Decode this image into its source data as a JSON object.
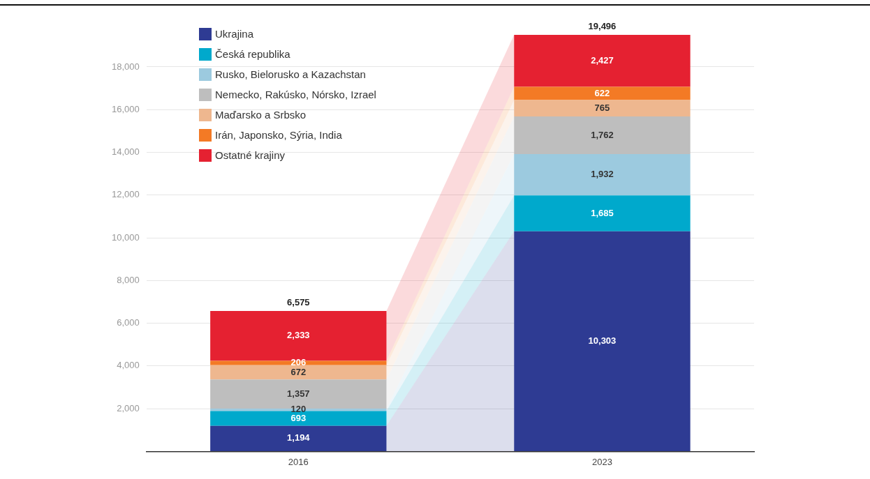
{
  "chart_data": {
    "type": "bar",
    "stacked": true,
    "categories": [
      "2016",
      "2023"
    ],
    "series": [
      {
        "name": "Ukrajina",
        "color": "#2e3b93",
        "values": [
          1194,
          10303
        ],
        "value_labels": [
          "1,194",
          "10,303"
        ]
      },
      {
        "name": "Česká republika",
        "color": "#00a9cc",
        "values": [
          693,
          1685
        ],
        "value_labels": [
          "693",
          "1,685"
        ]
      },
      {
        "name": "Rusko, Bielorusko a Kazachstan",
        "color": "#9ccadf",
        "values": [
          120,
          1932
        ],
        "value_labels": [
          "120",
          "1,932"
        ]
      },
      {
        "name": "Nemecko, Rakúsko, Nórsko, Izrael",
        "color": "#bebebe",
        "values": [
          1357,
          1762
        ],
        "value_labels": [
          "1,357",
          "1,762"
        ]
      },
      {
        "name": "Maďarsko a Srbsko",
        "color": "#eeb78f",
        "values": [
          672,
          765
        ],
        "value_labels": [
          "672",
          "765"
        ]
      },
      {
        "name": "Irán, Japonsko, Sýria, India",
        "color": "#f37a25",
        "values": [
          206,
          622
        ],
        "value_labels": [
          "206",
          "622"
        ]
      },
      {
        "name": "Ostatné krajiny",
        "color": "#e52131",
        "values": [
          2333,
          2427
        ],
        "value_labels": [
          "2,333",
          "2,427"
        ]
      }
    ],
    "totals": [
      "6,575",
      "19,496"
    ],
    "ylim": [
      0,
      19500
    ],
    "yticks": [
      {
        "value": 0,
        "label": null
      },
      {
        "value": 2000,
        "label": "2,000"
      },
      {
        "value": 4000,
        "label": "4,000"
      },
      {
        "value": 6000,
        "label": "6,000"
      },
      {
        "value": 8000,
        "label": "8,000"
      },
      {
        "value": 10000,
        "label": "10,000"
      },
      {
        "value": 12000,
        "label": "12,000"
      },
      {
        "value": 14000,
        "label": "14,000"
      },
      {
        "value": 16000,
        "label": "16,000"
      },
      {
        "value": 18000,
        "label": "18,000"
      }
    ],
    "grid": "y",
    "legend": "top left"
  }
}
